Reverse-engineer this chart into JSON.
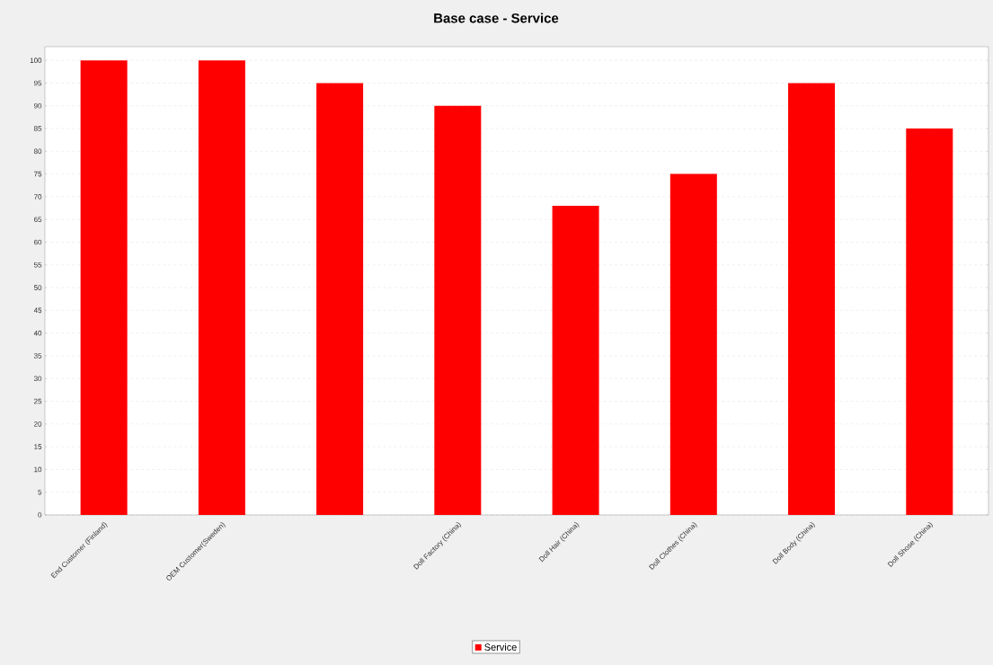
{
  "chart_data": {
    "type": "bar",
    "title": "Base case - Service",
    "categories": [
      "End Customer (Finland)",
      "OEM Customer(Sweden)",
      null,
      "Doll Factory (China)",
      "Doll Hair (China)",
      "Doll Clothes (China)",
      "Doll Body (China)",
      "Doll Shose (China)"
    ],
    "series": [
      {
        "name": "Service",
        "color": "#ff0000",
        "values": [
          100,
          100,
          95,
          90,
          68,
          75,
          95,
          85
        ]
      }
    ],
    "ylim": [
      0,
      103
    ],
    "yticks": [
      0,
      5,
      10,
      15,
      20,
      25,
      30,
      35,
      40,
      45,
      50,
      55,
      60,
      65,
      70,
      75,
      80,
      85,
      90,
      95,
      100
    ],
    "grid": "y",
    "legend": "bottom"
  }
}
